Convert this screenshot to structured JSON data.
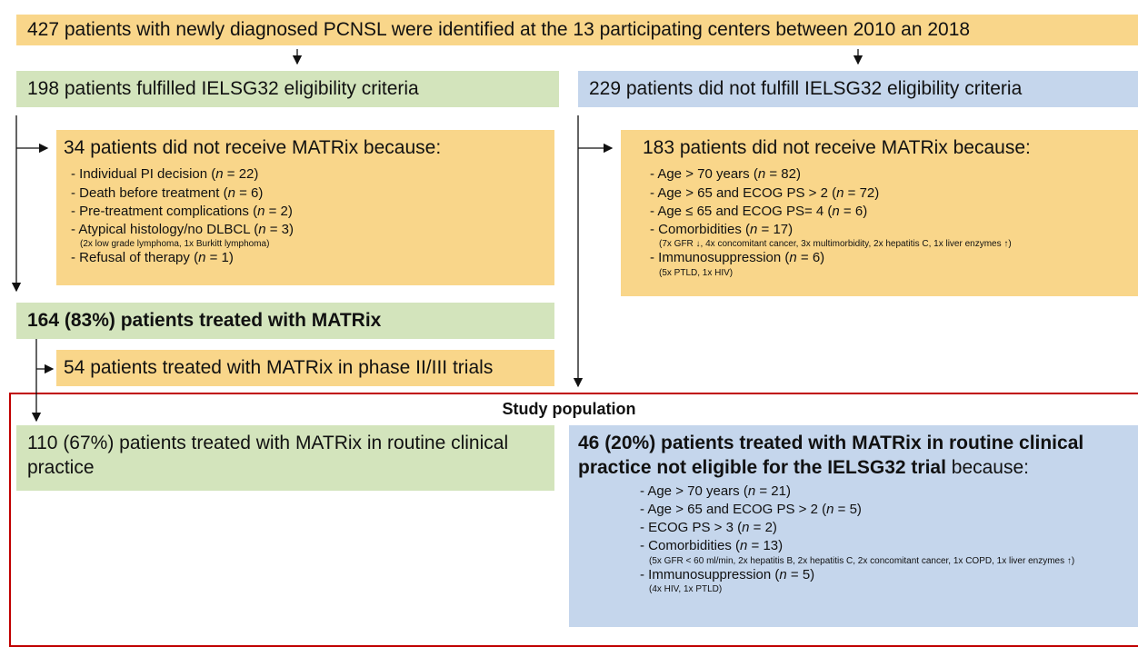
{
  "header": {
    "text": "427 patients with newly diagnosed PCNSL were identified at the 13 participating centers between 2010 an 2018"
  },
  "eligible": {
    "text": "198 patients fulfilled IELSG32 eligibility criteria"
  },
  "not_eligible": {
    "text": "229 patients did not fulfill IELSG32 eligibility criteria"
  },
  "left_excluded": {
    "title": "34 patients did not receive MATRix because:",
    "items": [
      {
        "pre": "- Individual PI decision (",
        "var": "n",
        "post": " = 22)"
      },
      {
        "pre": "- Death before treatment (",
        "var": "n",
        "post": " = 6)"
      },
      {
        "pre": "- Pre-treatment complications (",
        "var": "n",
        "post": " = 2)"
      },
      {
        "pre": "- Atypical histology/no DLBCL (",
        "var": "n",
        "post": " = 3)",
        "note": "(2x low grade lymphoma, 1x Burkitt lymphoma)"
      },
      {
        "pre": "- Refusal of therapy (",
        "var": "n",
        "post": " = 1)"
      }
    ]
  },
  "right_excluded": {
    "title": "183 patients did not receive MATRix because:",
    "items": [
      {
        "pre": "- Age > 70 years (",
        "var": "n",
        "post": " = 82)"
      },
      {
        "pre": "- Age > 65 and ECOG PS > 2 (",
        "var": "n",
        "post": " = 72)"
      },
      {
        "pre": "- Age ≤ 65 and ECOG PS= 4 (",
        "var": "n",
        "post": " = 6)"
      },
      {
        "pre": "- Comorbidities (",
        "var": "n",
        "post": " = 17)",
        "note": "(7x GFR ↓, 4x concomitant cancer, 3x multimorbidity, 2x hepatitis C, 1x liver enzymes ↑)"
      },
      {
        "pre": "- Immunosuppression (",
        "var": "n",
        "post": " = 6)",
        "note": "(5x PTLD, 1x HIV)"
      }
    ]
  },
  "treated": {
    "text": "164 (83%) patients treated with MATRix"
  },
  "trials": {
    "text": "54 patients treated with MATRix in phase II/III trials"
  },
  "study": {
    "title": "Study population"
  },
  "routine": {
    "text": "110 (67%) patients treated with MATRix in routine clinical practice"
  },
  "routine_ineligible": {
    "title_bold": "46 (20%) patients treated with MATRix in routine clinical practice not eligible for the IELSG32 trial",
    "title_rest": " because:",
    "items": [
      {
        "pre": "- Age > 70 years (",
        "var": "n",
        "post": " = 21)"
      },
      {
        "pre": "- Age > 65 and ECOG PS > 2 (",
        "var": "n",
        "post": " = 5)"
      },
      {
        "pre": "- ECOG PS > 3 (",
        "var": "n",
        "post": " = 2)"
      },
      {
        "pre": "- Comorbidities (",
        "var": "n",
        "post": " = 13)",
        "note": "(5x GFR < 60 ml/min, 2x hepatitis B, 2x hepatitis C, 2x concomitant cancer, 1x COPD, 1x liver enzymes ↑)"
      },
      {
        "pre": "- Immunosuppression (",
        "var": "n",
        "post": " = 5)",
        "note": "(4x HIV, 1x PTLD)"
      }
    ]
  }
}
